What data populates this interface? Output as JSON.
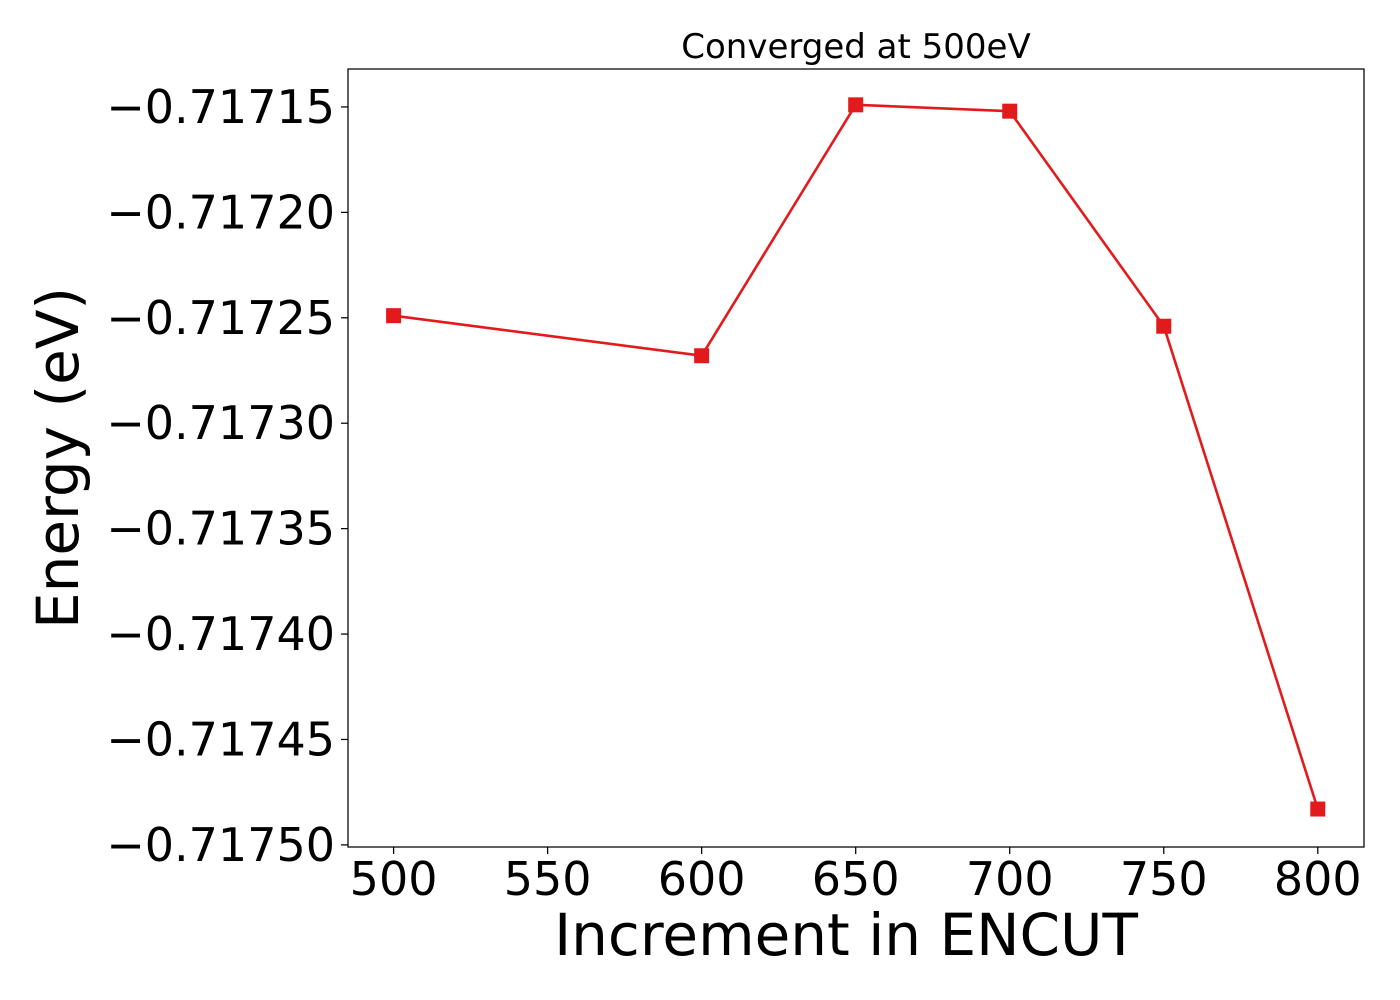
{
  "chart_data": {
    "type": "line",
    "title": "Converged at 500eV",
    "xlabel": "Increment in ENCUT",
    "ylabel": "Energy (eV)",
    "x": [
      500,
      600,
      650,
      700,
      750,
      800
    ],
    "series": [
      {
        "values": [
          -0.717249,
          -0.717268,
          -0.717149,
          -0.717152,
          -0.717254,
          -0.717483
        ],
        "color": "#e31a1c",
        "marker": "square"
      }
    ],
    "xticks": [
      500,
      550,
      600,
      650,
      700,
      750,
      800
    ],
    "xtick_labels": [
      "500",
      "550",
      "600",
      "650",
      "700",
      "750",
      "800"
    ],
    "yticks": [
      -0.71715,
      -0.7172,
      -0.71725,
      -0.7173,
      -0.71735,
      -0.7174,
      -0.71745,
      -0.7175
    ],
    "ytick_labels": [
      "−0.71715",
      "−0.71720",
      "−0.71725",
      "−0.71730",
      "−0.71735",
      "−0.71740",
      "−0.71745",
      "−0.71750"
    ],
    "xlim": [
      485.2,
      815
    ],
    "ylim": [
      -0.717501,
      -0.717132
    ],
    "grid": false,
    "legend": "none"
  }
}
